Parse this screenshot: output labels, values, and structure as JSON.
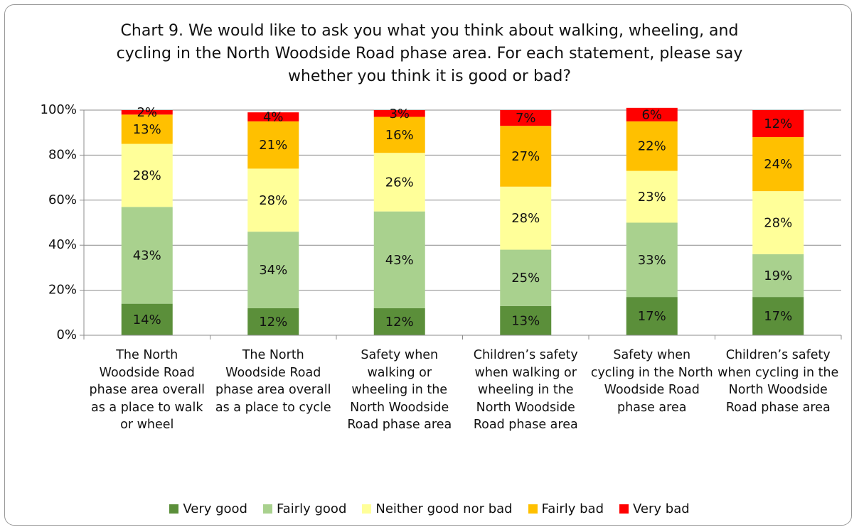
{
  "chart_data": {
    "type": "stacked_bar",
    "title": "Chart 9. We would like to ask you what you think about walking, wheeling, and cycling in the North Woodside Road phase area. For each statement, please say whether you think it is good or bad?",
    "categories": [
      "The North Woodside Road phase area overall as a place to walk or wheel",
      "The North Woodside Road phase area overall as a place to cycle",
      "Safety when walking or wheeling in the North Woodside Road phase area",
      "Children’s safety when walking or wheeling in the North Woodside Road phase area",
      "Safety when cycling in the North Woodside Road phase area",
      "Children’s safety when cycling in the North Woodside Road phase area"
    ],
    "series": [
      {
        "name": "Very good",
        "color": "#5b8f3a",
        "values": [
          14,
          12,
          12,
          13,
          17,
          17
        ],
        "value_labels": [
          "14%",
          "12%",
          "12%",
          "13%",
          "17%",
          "17%"
        ]
      },
      {
        "name": "Fairly good",
        "color": "#a9d18e",
        "values": [
          43,
          34,
          43,
          25,
          33,
          19
        ],
        "value_labels": [
          "43%",
          "34%",
          "43%",
          "25%",
          "33%",
          "19%"
        ]
      },
      {
        "name": "Neither good nor bad",
        "color": "#ffff99",
        "values": [
          28,
          28,
          26,
          28,
          23,
          28
        ],
        "value_labels": [
          "28%",
          "28%",
          "26%",
          "28%",
          "23%",
          "28%"
        ]
      },
      {
        "name": "Fairly bad",
        "color": "#ffc000",
        "values": [
          13,
          21,
          16,
          27,
          22,
          24
        ],
        "value_labels": [
          "13%",
          "21%",
          "16%",
          "27%",
          "22%",
          "24%"
        ]
      },
      {
        "name": "Very bad",
        "color": "#ff0000",
        "values": [
          2,
          4,
          3,
          7,
          6,
          12
        ],
        "value_labels": [
          "2%",
          "4%",
          "3%",
          "7%",
          "6%",
          "12%"
        ]
      }
    ],
    "ylim": [
      0,
      100
    ],
    "yticks": [
      {
        "value": 0,
        "label": "0%"
      },
      {
        "value": 20,
        "label": "20%"
      },
      {
        "value": 40,
        "label": "40%"
      },
      {
        "value": 60,
        "label": "60%"
      },
      {
        "value": 80,
        "label": "80%"
      },
      {
        "value": 100,
        "label": "100%"
      }
    ],
    "grid": true,
    "legend": "bottom"
  }
}
